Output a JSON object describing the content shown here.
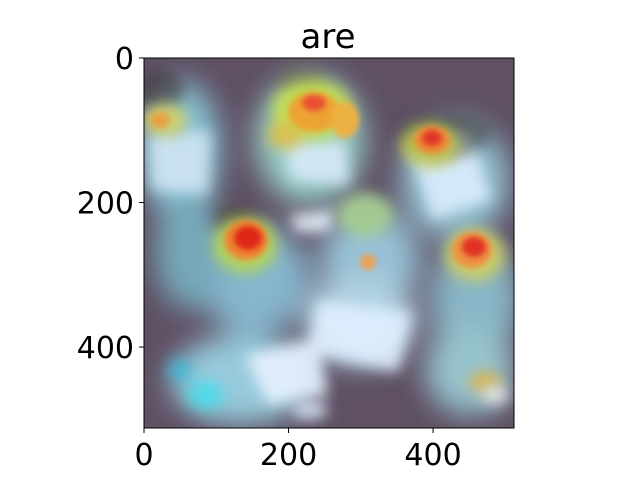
{
  "figure": {
    "title": "are"
  },
  "chart_data": {
    "type": "heatmap",
    "title": "are",
    "xlabel": "",
    "ylabel": "",
    "xlim": [
      0,
      512
    ],
    "ylim": [
      512,
      0
    ],
    "x_ticks": [
      "0",
      "200",
      "400"
    ],
    "y_ticks": [
      "0",
      "200",
      "400"
    ],
    "x_tick_values": [
      0,
      200,
      400
    ],
    "y_tick_values": [
      0,
      200,
      400
    ],
    "grid": false,
    "legend": "none",
    "colormap": "jet",
    "content": "attention heatmap overlay on photo of children reading"
  }
}
